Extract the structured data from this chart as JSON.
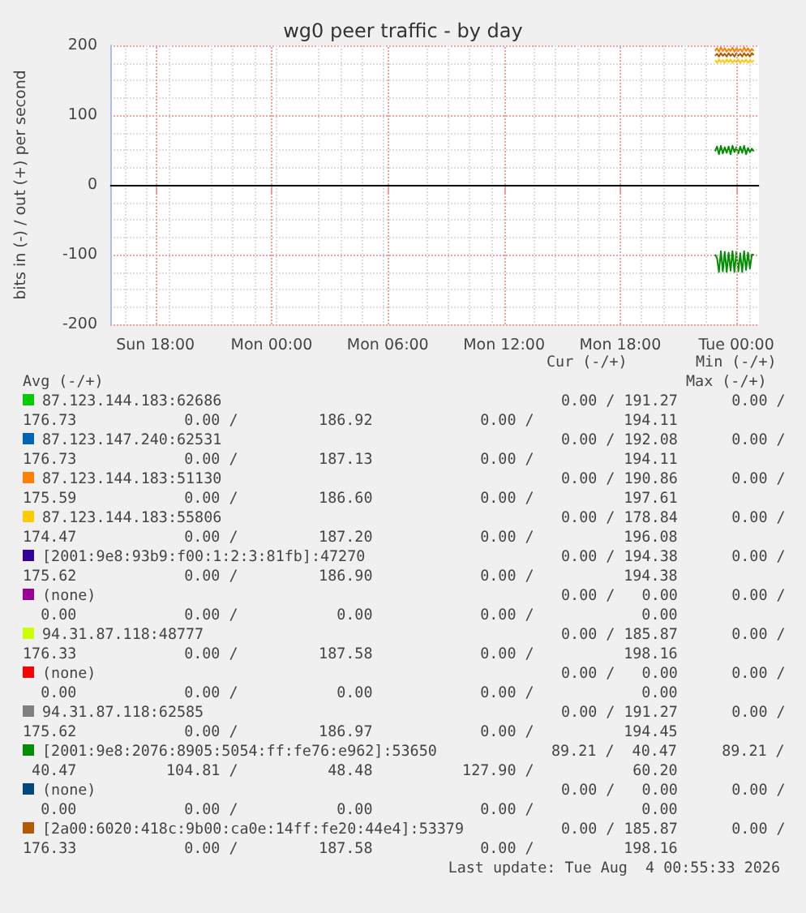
{
  "chart_data": {
    "type": "line",
    "title": "wg0 peer traffic - by day",
    "ylabel": "bits in (-) / out (+) per second",
    "x": [
      "2026-08-03T22:54",
      "2026-08-03T23:00",
      "2026-08-03T23:06",
      "2026-08-03T23:12",
      "2026-08-03T23:18",
      "2026-08-03T23:24",
      "2026-08-03T23:30",
      "2026-08-03T23:36",
      "2026-08-03T23:42",
      "2026-08-03T23:48",
      "2026-08-03T23:54",
      "2026-08-04T00:00",
      "2026-08-04T00:06",
      "2026-08-04T00:12",
      "2026-08-04T00:18",
      "2026-08-04T00:24",
      "2026-08-04T00:30",
      "2026-08-04T00:36",
      "2026-08-04T00:42",
      "2026-08-04T00:48",
      "2026-08-04T00:54"
    ],
    "xlim": [
      "2026-08-02T15:40",
      "2026-08-04T01:10"
    ],
    "xticks": [
      {
        "value": "2026-08-02T18:00",
        "label": "Sun 18:00"
      },
      {
        "value": "2026-08-03T00:00",
        "label": "Mon 00:00"
      },
      {
        "value": "2026-08-03T06:00",
        "label": "Mon 06:00"
      },
      {
        "value": "2026-08-03T12:00",
        "label": "Mon 12:00"
      },
      {
        "value": "2026-08-03T18:00",
        "label": "Mon 18:00"
      },
      {
        "value": "2026-08-04T00:00",
        "label": "Tue 00:00"
      }
    ],
    "ylim": [
      -200,
      200
    ],
    "yticks": [
      -200,
      -100,
      0,
      100,
      200
    ],
    "grid": true,
    "legend": "bottom",
    "marker": "none",
    "line_style": "solid",
    "ref_lines": [
      {
        "axis": "y",
        "value": 0,
        "color": "#000000"
      }
    ],
    "series": [
      {
        "name": "87.123.144.183:62686",
        "color": "#00cc00",
        "values": [
          null,
          null,
          null,
          null,
          null,
          null,
          null,
          null,
          null,
          null,
          null,
          null,
          null,
          null,
          null,
          null,
          null,
          null,
          null,
          null,
          null
        ]
      },
      {
        "name": "87.123.147.240:62531",
        "color": "#0066b3",
        "values": [
          null,
          null,
          null,
          null,
          null,
          null,
          null,
          null,
          null,
          null,
          null,
          null,
          null,
          null,
          null,
          null,
          null,
          null,
          null,
          null,
          null
        ]
      },
      {
        "name": "87.123.144.183:51130",
        "color": "#ff8000",
        "values": [
          192,
          196,
          191,
          197,
          192,
          196,
          191,
          195,
          192,
          197,
          191,
          196,
          192,
          195,
          191,
          197,
          192,
          196,
          191,
          195,
          192
        ]
      },
      {
        "name": "87.123.144.183:55806",
        "color": "#ffcc00",
        "values": [
          179,
          175,
          180,
          176,
          179,
          175,
          180,
          176,
          180,
          175,
          179,
          176,
          180,
          175,
          179,
          176,
          180,
          175,
          179,
          176,
          179
        ]
      },
      {
        "name": "[2001:9e8:93b9:f00:1:2:3:81fb]:47270",
        "color": "#330099",
        "values": [
          null,
          null,
          null,
          null,
          null,
          null,
          null,
          null,
          null,
          null,
          null,
          null,
          null,
          null,
          null,
          null,
          null,
          null,
          null,
          null,
          null
        ]
      },
      {
        "name": "(none)",
        "color": "#990099",
        "values": [
          null,
          null,
          null,
          null,
          null,
          null,
          null,
          null,
          null,
          null,
          null,
          null,
          null,
          null,
          null,
          null,
          null,
          null,
          null,
          null,
          null
        ]
      },
      {
        "name": "94.31.87.118:48777",
        "color": "#ccff00",
        "values": [
          null,
          null,
          null,
          null,
          null,
          null,
          null,
          null,
          null,
          null,
          null,
          null,
          null,
          null,
          null,
          null,
          null,
          null,
          null,
          null,
          null
        ]
      },
      {
        "name": "(none)",
        "color": "#ff0000",
        "values": [
          null,
          null,
          null,
          null,
          null,
          null,
          null,
          null,
          null,
          null,
          null,
          null,
          null,
          null,
          null,
          null,
          null,
          null,
          null,
          null,
          null
        ]
      },
      {
        "name": "94.31.87.118:62585",
        "color": "#808080",
        "values": [
          null,
          null,
          null,
          null,
          null,
          null,
          null,
          null,
          null,
          null,
          null,
          null,
          null,
          null,
          null,
          null,
          null,
          null,
          null,
          null,
          null
        ]
      },
      {
        "name": "[2001:9e8:2076:8905:5054:ff:fe76:e962]:53650",
        "color": "#008f00",
        "values": [
          48,
          55,
          44,
          56,
          45,
          54,
          46,
          55,
          44,
          56,
          47,
          54,
          45,
          55,
          46,
          56,
          44,
          53,
          47,
          52,
          48
        ]
      },
      {
        "color": "#008f00",
        "values": [
          -100,
          -105,
          -125,
          -95,
          -124,
          -96,
          -125,
          -97,
          -123,
          -95,
          -125,
          -96,
          -124,
          -98,
          -125,
          -95,
          -122,
          -97,
          -120,
          -100,
          -100
        ]
      },
      {
        "name": "(none)",
        "color": "#00487d",
        "values": [
          null,
          null,
          null,
          null,
          null,
          null,
          null,
          null,
          null,
          null,
          null,
          null,
          null,
          null,
          null,
          null,
          null,
          null,
          null,
          null,
          null
        ]
      },
      {
        "name": "[2a00:6020:418c:9b00:ca0e:14ff:fe20:44e4]:53379",
        "color": "#b35a00",
        "values": [
          185,
          188,
          184,
          189,
          185,
          188,
          184,
          189,
          185,
          188,
          184,
          189,
          185,
          188,
          184,
          189,
          185,
          188,
          184,
          189,
          186
        ]
      }
    ],
    "annotations": [
      "Cur (-/+)",
      "Min (-/+)",
      "Avg (-/+)",
      "Max (-/+)",
      "0.00 / 191.27      0.00 /",
      "176.73            0.00 /         186.92            0.00 /          194.11",
      "0.00 / 192.08      0.00 /",
      "176.73            0.00 /         187.13            0.00 /          194.11",
      "0.00 / 190.86      0.00 /",
      "175.59            0.00 /         186.60            0.00 /          197.61",
      "0.00 / 178.84      0.00 /",
      "174.47            0.00 /         187.20            0.00 /          196.08",
      "0.00 / 194.38      0.00 /",
      "175.62            0.00 /         186.90            0.00 /          194.38",
      "0.00 /   0.00      0.00 /",
      "  0.00            0.00 /           0.00            0.00 /            0.00",
      "0.00 / 185.87      0.00 /",
      "176.33            0.00 /         187.58            0.00 /          198.16",
      "0.00 /   0.00      0.00 /",
      "  0.00            0.00 /           0.00            0.00 /            0.00",
      "0.00 / 191.27      0.00 /",
      "175.62            0.00 /         186.97            0.00 /          194.45",
      "89.21 /  40.47     89.21 /",
      " 40.47          104.81 /          48.48          127.90 /           60.20",
      "0.00 /   0.00      0.00 /",
      "  0.00            0.00 /           0.00            0.00 /            0.00",
      "0.00 / 185.87      0.00 /",
      "176.33            0.00 /         187.58            0.00 /          198.16",
      "Last update: Tue Aug  4 00:55:33 2026"
    ]
  }
}
